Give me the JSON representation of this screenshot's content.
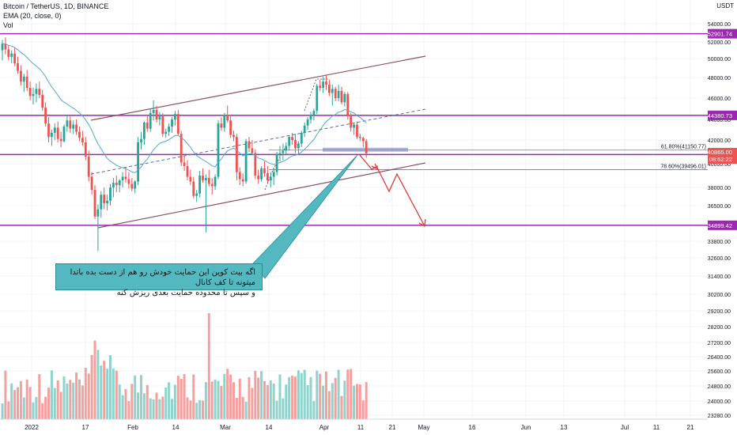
{
  "header": {
    "symbol": "Bitcoin / TetherUS, 1D, BINANCE",
    "ema": "EMA (20, close, 0)",
    "vol": "Vol"
  },
  "currency": "USDT",
  "note_lines": [
    "اگه بیت کوین این حمایت خودش رو هم از دست بده باتدا میتونه تا کف کانال",
    "و سپس تا محدوده حمایت بعدی ریزش کنه"
  ],
  "colors": {
    "bull": "#26a69a",
    "bear": "#ef5350",
    "level": "#9c27b0",
    "channel": "#8e5060",
    "ema": "#4fa8d6",
    "vol_bull": "#8fd3cc",
    "vol_bear": "#f4a09d"
  },
  "chart_data": {
    "type": "candlestick",
    "price_ticks": [
      54000,
      52000,
      50000,
      48000,
      46000,
      44000,
      42000,
      40000,
      38000,
      36500,
      35000,
      33800,
      32600,
      31400,
      30200,
      29200,
      28200,
      27200,
      26400,
      25600,
      24800,
      24000,
      23280
    ],
    "x_ticks": [
      "2022",
      "17",
      "Feb",
      "14",
      "Mar",
      "14",
      "Apr",
      "11",
      "21",
      "May",
      "16",
      "Jun",
      "13",
      "Jul",
      "11",
      "21"
    ],
    "horizontal_levels": [
      {
        "price": 52901.74,
        "label": "52901.74"
      },
      {
        "price": 44380.73,
        "label": "44380.73"
      },
      {
        "price": 40773.31,
        "label": "40773.31"
      },
      {
        "price": 34899.42,
        "label": "34899.42"
      }
    ],
    "current_price": {
      "price": 40865.0,
      "label": "40865.00",
      "countdown": "08:52:22"
    },
    "fibonacci": [
      {
        "label": "61.80%(41150.77)",
        "price": 41150.77
      },
      {
        "label": "78.60%(39496.01)",
        "price": 39496.01
      }
    ],
    "candles": [
      [
        51000,
        52200,
        49800,
        51800
      ],
      [
        51800,
        52500,
        50500,
        51100
      ],
      [
        51100,
        51600,
        49800,
        50200
      ],
      [
        50200,
        51000,
        49500,
        50600
      ],
      [
        50600,
        51300,
        49200,
        49500
      ],
      [
        49500,
        50200,
        48400,
        48700
      ],
      [
        48700,
        49300,
        47200,
        47600
      ],
      [
        47600,
        48400,
        46600,
        48100
      ],
      [
        48100,
        48800,
        46700,
        47000
      ],
      [
        47000,
        47600,
        45800,
        46200
      ],
      [
        46200,
        47000,
        45400,
        46400
      ],
      [
        46400,
        47400,
        45600,
        46900
      ],
      [
        46900,
        47600,
        46000,
        46300
      ],
      [
        46300,
        46800,
        44800,
        45100
      ],
      [
        45100,
        45600,
        43300,
        43600
      ],
      [
        43600,
        44200,
        41800,
        42300
      ],
      [
        42300,
        43000,
        41500,
        42700
      ],
      [
        42700,
        43600,
        42000,
        43200
      ],
      [
        43200,
        43800,
        41800,
        42100
      ],
      [
        42100,
        42800,
        41400,
        41900
      ],
      [
        41900,
        43500,
        41800,
        43300
      ],
      [
        43300,
        44400,
        42800,
        43900
      ],
      [
        43900,
        44300,
        42700,
        43100
      ],
      [
        43100,
        43900,
        42600,
        43500
      ],
      [
        43500,
        44000,
        42500,
        42800
      ],
      [
        42800,
        43300,
        41900,
        42200
      ],
      [
        42200,
        42900,
        41500,
        41800
      ],
      [
        41800,
        42300,
        40300,
        40600
      ],
      [
        40600,
        41100,
        38500,
        38900
      ],
      [
        38900,
        39300,
        37400,
        37800
      ],
      [
        37800,
        38200,
        35400,
        35600
      ],
      [
        35600,
        36600,
        33100,
        36200
      ],
      [
        36200,
        37700,
        35500,
        37400
      ],
      [
        37400,
        38000,
        36200,
        36700
      ],
      [
        36700,
        37400,
        36100,
        36900
      ],
      [
        36900,
        38300,
        36500,
        38000
      ],
      [
        38000,
        38800,
        37200,
        38400
      ],
      [
        38400,
        39000,
        37600,
        38200
      ],
      [
        38200,
        38700,
        37600,
        38600
      ],
      [
        38600,
        39300,
        38000,
        38900
      ],
      [
        38900,
        39700,
        38400,
        38700
      ],
      [
        38700,
        39300,
        37900,
        38300
      ],
      [
        38300,
        38800,
        37700,
        37900
      ],
      [
        37900,
        38600,
        37500,
        38500
      ],
      [
        38500,
        42300,
        38200,
        41800
      ],
      [
        41800,
        42800,
        41200,
        42100
      ],
      [
        42100,
        43800,
        41600,
        43700
      ],
      [
        43700,
        44300,
        42800,
        43100
      ],
      [
        43100,
        45000,
        42800,
        44600
      ],
      [
        44600,
        45800,
        43900,
        44900
      ],
      [
        44900,
        45300,
        43700,
        44000
      ],
      [
        44000,
        44700,
        43400,
        44300
      ],
      [
        44300,
        44600,
        42300,
        42600
      ],
      [
        42600,
        43100,
        42200,
        42800
      ],
      [
        42800,
        43600,
        42400,
        43300
      ],
      [
        43300,
        44200,
        42700,
        44000
      ],
      [
        44000,
        44800,
        43400,
        44500
      ],
      [
        44500,
        44900,
        42400,
        42600
      ],
      [
        42600,
        42900,
        39800,
        40100
      ],
      [
        40100,
        40600,
        39400,
        39800
      ],
      [
        39800,
        40300,
        38600,
        38900
      ],
      [
        38900,
        39500,
        38200,
        38500
      ],
      [
        38500,
        38900,
        37100,
        37300
      ],
      [
        37300,
        37800,
        36800,
        37500
      ],
      [
        37500,
        39400,
        37200,
        39000
      ],
      [
        39000,
        39600,
        38400,
        38600
      ],
      [
        38600,
        39100,
        34400,
        38800
      ],
      [
        38800,
        39500,
        38100,
        38300
      ],
      [
        38300,
        38800,
        37400,
        38100
      ],
      [
        38100,
        39100,
        37800,
        38900
      ],
      [
        38900,
        43900,
        38700,
        43600
      ],
      [
        43600,
        44200,
        42900,
        43200
      ],
      [
        43200,
        44600,
        42800,
        44400
      ],
      [
        44400,
        45300,
        43700,
        43900
      ],
      [
        43900,
        44300,
        42200,
        42500
      ],
      [
        42500,
        42900,
        41900,
        42300
      ],
      [
        42300,
        42600,
        38600,
        39300
      ],
      [
        39300,
        39700,
        38200,
        38700
      ],
      [
        38700,
        39200,
        38100,
        38500
      ],
      [
        38500,
        42100,
        38300,
        41900
      ],
      [
        41900,
        42300,
        41000,
        41300
      ],
      [
        41300,
        42000,
        40800,
        40900
      ],
      [
        40900,
        41200,
        38700,
        39000
      ],
      [
        39000,
        39500,
        38300,
        38700
      ],
      [
        38700,
        39800,
        38500,
        39600
      ],
      [
        39600,
        40200,
        38900,
        39200
      ],
      [
        39200,
        39800,
        38400,
        38600
      ],
      [
        38600,
        39300,
        38000,
        38900
      ],
      [
        38900,
        39600,
        38200,
        39300
      ],
      [
        39300,
        41000,
        39000,
        40800
      ],
      [
        40800,
        41500,
        40200,
        40900
      ],
      [
        40900,
        41700,
        40300,
        41100
      ],
      [
        41100,
        41800,
        40700,
        41500
      ],
      [
        41500,
        42400,
        41100,
        42300
      ],
      [
        42300,
        42700,
        41600,
        42000
      ],
      [
        42000,
        42600,
        40900,
        41300
      ],
      [
        41300,
        41900,
        40800,
        41700
      ],
      [
        41700,
        42900,
        41400,
        42700
      ],
      [
        42700,
        43700,
        42300,
        43400
      ],
      [
        43400,
        44200,
        43000,
        44000
      ],
      [
        44000,
        44700,
        43600,
        44400
      ],
      [
        44400,
        45000,
        43900,
        44800
      ],
      [
        44800,
        47400,
        44500,
        47200
      ],
      [
        47200,
        47800,
        46700,
        47000
      ],
      [
        47000,
        48100,
        46500,
        47600
      ],
      [
        47600,
        48200,
        46800,
        47300
      ],
      [
        47300,
        47800,
        46200,
        46500
      ],
      [
        46500,
        47300,
        45300,
        46900
      ],
      [
        46900,
        47100,
        45700,
        46000
      ],
      [
        46000,
        47300,
        45700,
        46700
      ],
      [
        46700,
        47100,
        45400,
        45600
      ],
      [
        45600,
        46600,
        45200,
        46400
      ],
      [
        46400,
        46600,
        44000,
        44300
      ],
      [
        44300,
        44600,
        42800,
        43200
      ],
      [
        43200,
        43700,
        42500,
        43500
      ],
      [
        43500,
        43800,
        42100,
        42300
      ],
      [
        42300,
        42600,
        41900,
        42200
      ],
      [
        42200,
        42300,
        41400,
        41900
      ],
      [
        41900,
        42100,
        40500,
        40865
      ]
    ]
  }
}
